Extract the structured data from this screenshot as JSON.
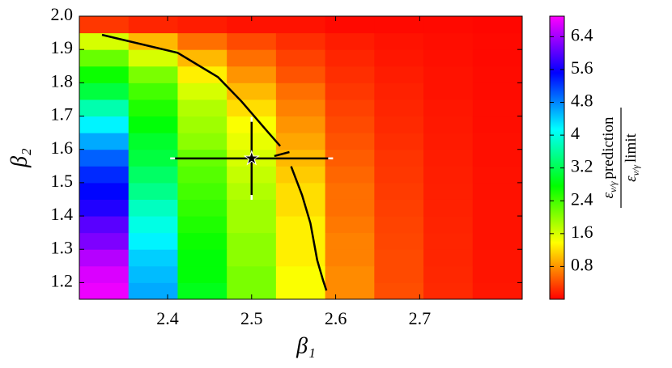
{
  "chart_data": {
    "type": "heatmap",
    "xlabel": "β₁",
    "ylabel": "β₂",
    "x": [
      2.324,
      2.383,
      2.441,
      2.5,
      2.558,
      2.617,
      2.675,
      2.734,
      2.792
    ],
    "y": [
      1.175,
      1.225,
      1.275,
      1.325,
      1.375,
      1.425,
      1.475,
      1.525,
      1.575,
      1.625,
      1.675,
      1.725,
      1.775,
      1.825,
      1.875,
      1.925,
      1.975
    ],
    "z": [
      [
        6.8,
        4.6,
        2.9,
        2.1,
        1.4,
        0.75,
        0.42,
        0.22,
        0.12
      ],
      [
        6.7,
        4.5,
        2.8,
        2.1,
        1.4,
        0.75,
        0.4,
        0.21,
        0.11
      ],
      [
        6.5,
        4.4,
        2.8,
        2.0,
        1.3,
        0.7,
        0.4,
        0.2,
        0.11
      ],
      [
        6.2,
        4.2,
        2.7,
        2.0,
        1.3,
        0.7,
        0.38,
        0.2,
        0.1
      ],
      [
        6.0,
        4.0,
        2.6,
        1.9,
        1.3,
        0.65,
        0.36,
        0.19,
        0.1
      ],
      [
        5.7,
        3.8,
        2.5,
        1.9,
        1.2,
        0.6,
        0.34,
        0.18,
        0.1
      ],
      [
        5.5,
        3.5,
        2.4,
        1.8,
        1.2,
        0.6,
        0.32,
        0.17,
        0.09
      ],
      [
        5.3,
        3.3,
        2.3,
        1.7,
        1.1,
        0.55,
        0.3,
        0.16,
        0.09
      ],
      [
        5.0,
        3.1,
        2.2,
        1.6,
        1.0,
        0.5,
        0.28,
        0.15,
        0.08
      ],
      [
        4.6,
        3.0,
        2.0,
        1.5,
        0.9,
        0.45,
        0.25,
        0.14,
        0.08
      ],
      [
        4.2,
        2.8,
        1.9,
        1.4,
        0.8,
        0.4,
        0.22,
        0.13,
        0.07
      ],
      [
        3.7,
        2.6,
        1.8,
        1.2,
        0.7,
        0.35,
        0.2,
        0.12,
        0.07
      ],
      [
        3.1,
        2.4,
        1.6,
        1.0,
        0.6,
        0.3,
        0.18,
        0.1,
        0.06
      ],
      [
        2.7,
        2.1,
        1.3,
        0.8,
        0.45,
        0.25,
        0.15,
        0.1,
        0.06
      ],
      [
        2.2,
        1.6,
        1.0,
        0.6,
        0.35,
        0.2,
        0.12,
        0.08,
        0.05
      ],
      [
        1.6,
        1.0,
        0.6,
        0.4,
        0.25,
        0.15,
        0.1,
        0.07,
        0.05
      ],
      [
        0.3,
        0.2,
        0.15,
        0.1,
        0.1,
        0.05,
        0.05,
        0.05,
        0.03
      ]
    ],
    "colormap": "gist_rainbow",
    "clim": [
      0,
      6.9
    ],
    "colorbar_ticks": [
      0.8,
      1.6,
      2.4,
      3.2,
      4.0,
      4.8,
      5.6,
      6.4
    ],
    "colorbar_label": {
      "symbol": "ε",
      "subscript": "ν/γ",
      "numerator": "prediction",
      "denominator": "limit"
    },
    "xlim": [
      2.295,
      2.822
    ],
    "ylim": [
      1.15,
      2.0
    ],
    "xticks": [
      2.4,
      2.5,
      2.6,
      2.7
    ],
    "yticks": [
      1.2,
      1.3,
      1.4,
      1.5,
      1.6,
      1.7,
      1.8,
      1.9,
      {
        "value": 2,
        "label": "2.0"
      }
    ],
    "curve": {
      "color": "#000000",
      "x": [
        2.322,
        2.412,
        2.46,
        2.488,
        2.517,
        2.534,
        null,
        2.527,
        2.545,
        null,
        2.547,
        2.56,
        2.57,
        2.578,
        2.585,
        2.589
      ],
      "y": [
        1.944,
        1.89,
        1.817,
        1.744,
        1.659,
        1.61,
        null,
        1.58,
        1.592,
        null,
        1.549,
        1.463,
        1.378,
        1.268,
        1.207,
        1.176
      ]
    },
    "point": {
      "x": 2.5,
      "y": 1.573,
      "xerr": 0.094,
      "yerr": 0.117
    }
  }
}
